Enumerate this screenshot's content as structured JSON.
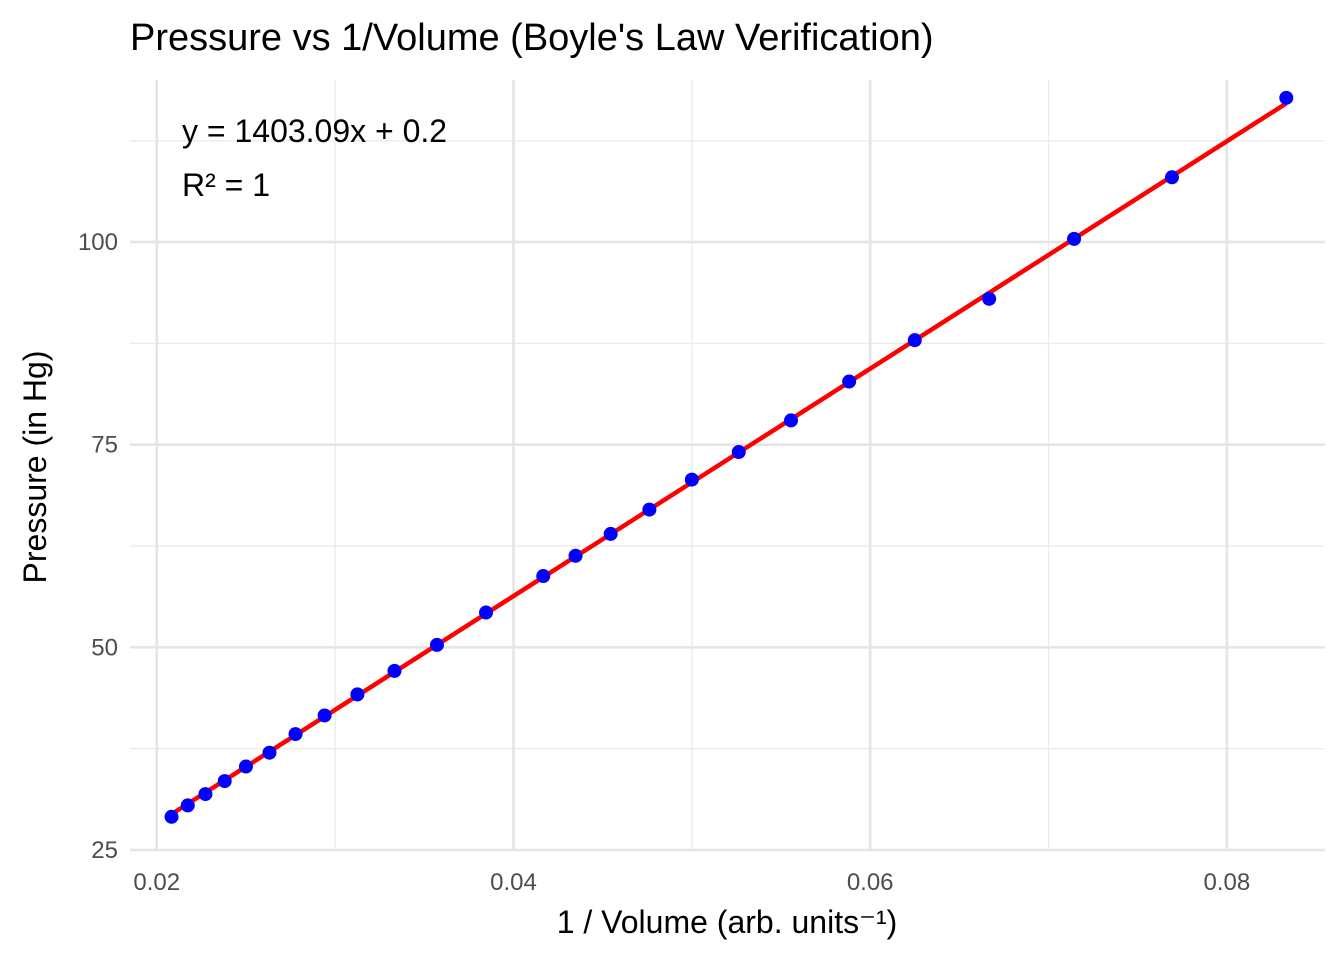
{
  "chart_data": {
    "type": "scatter",
    "title": "Pressure vs 1/Volume (Boyle's Law Verification)",
    "xlabel": "1 / Volume (arb. units⁻¹)",
    "ylabel": "Pressure (in Hg)",
    "xlim": [
      0.0185,
      0.0855
    ],
    "ylim": [
      25,
      120
    ],
    "x_major_ticks": [
      0.02,
      0.04,
      0.06,
      0.08
    ],
    "x_tick_labels": [
      "0.02",
      "0.04",
      "0.06",
      "0.08"
    ],
    "x_minor_ticks": [
      0.03,
      0.05,
      0.07
    ],
    "y_major_ticks": [
      25,
      50,
      75,
      100
    ],
    "y_tick_labels": [
      "25",
      "50",
      "75",
      "100"
    ],
    "y_minor_ticks": [
      37.5,
      62.5,
      87.5,
      112.5
    ],
    "grid": true,
    "annotations": [
      "y = 1403.09x + 0.2",
      "R² = 1"
    ],
    "points_color": "#0000ff",
    "fit_color": "#ff0000",
    "fit": {
      "slope": 1403.09,
      "intercept": 0.2
    },
    "x": [
      0.02083,
      0.02174,
      0.02273,
      0.02381,
      0.025,
      0.02632,
      0.02778,
      0.02941,
      0.03125,
      0.03333,
      0.03571,
      0.03846,
      0.04167,
      0.04348,
      0.04545,
      0.04762,
      0.05,
      0.05263,
      0.05556,
      0.05882,
      0.0625,
      0.06667,
      0.07143,
      0.07692,
      0.08333
    ],
    "y": [
      29.1,
      30.5,
      31.9,
      33.5,
      35.3,
      37.0,
      39.3,
      41.6,
      44.2,
      47.1,
      50.3,
      54.3,
      58.8,
      61.3,
      64.0,
      67.0,
      70.7,
      74.1,
      78.0,
      82.8,
      87.9,
      93.0,
      100.4,
      108.0,
      117.8
    ]
  }
}
